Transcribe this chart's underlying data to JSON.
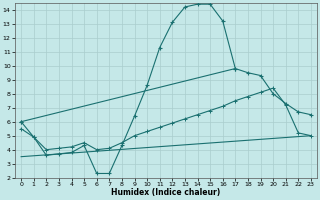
{
  "xlabel": "Humidex (Indice chaleur)",
  "bg_color": "#c5e8e8",
  "grid_color": "#aacece",
  "line_color": "#1a7070",
  "xlim": [
    -0.5,
    23.5
  ],
  "ylim": [
    2,
    14.5
  ],
  "xticks": [
    0,
    1,
    2,
    3,
    4,
    5,
    6,
    7,
    8,
    9,
    10,
    11,
    12,
    13,
    14,
    15,
    16,
    17,
    18,
    19,
    20,
    21,
    22,
    23
  ],
  "yticks": [
    2,
    3,
    4,
    5,
    6,
    7,
    8,
    9,
    10,
    11,
    12,
    13,
    14
  ],
  "curve1_x": [
    0,
    1,
    2,
    3,
    4,
    5,
    6,
    7,
    8,
    9,
    10,
    11,
    12,
    13,
    14,
    15,
    16,
    17
  ],
  "curve1_y": [
    6.0,
    4.9,
    3.6,
    3.7,
    3.8,
    4.3,
    2.3,
    2.3,
    4.3,
    6.4,
    8.6,
    11.3,
    13.1,
    14.2,
    14.4,
    14.4,
    13.2,
    9.8
  ],
  "curve2_x": [
    0,
    17,
    18,
    19,
    20,
    21,
    22,
    23
  ],
  "curve2_y": [
    6.0,
    9.8,
    9.5,
    9.3,
    8.0,
    7.3,
    6.7,
    6.5
  ],
  "curve3_x": [
    0,
    1,
    2,
    3,
    4,
    5,
    6,
    7,
    8,
    9,
    10,
    11,
    12,
    13,
    14,
    15,
    16,
    17,
    18,
    19,
    20,
    21,
    22,
    23
  ],
  "curve3_y": [
    5.5,
    4.9,
    4.0,
    4.1,
    4.2,
    4.5,
    4.0,
    4.1,
    4.5,
    5.0,
    5.3,
    5.6,
    5.9,
    6.2,
    6.5,
    6.8,
    7.1,
    7.5,
    7.8,
    8.1,
    8.4,
    7.2,
    5.2,
    5.0
  ],
  "line4_x": [
    0,
    23
  ],
  "line4_y": [
    3.5,
    5.0
  ]
}
